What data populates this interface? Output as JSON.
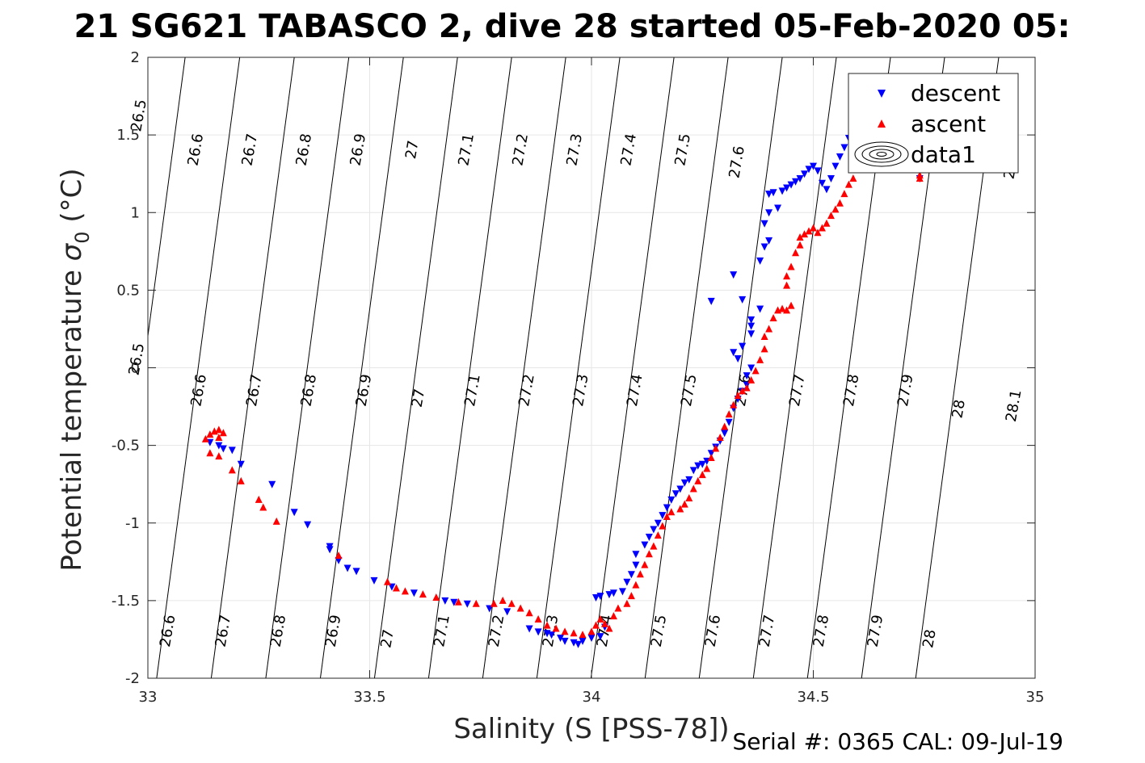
{
  "figure": {
    "title": "21 SG621 TABASCO 2, dive 28 started 05-Feb-2020 05:",
    "footer": "Serial #: 0365  CAL: 09-Jul-19"
  },
  "chart_data": {
    "type": "scatter",
    "xlabel": "Salinity (S [PSS-78])",
    "ylabel_main": "Potential temperature ",
    "ylabel_sigma": "σ",
    "ylabel_sub": "0",
    "ylabel_unit": " (°C)",
    "xlim": [
      33,
      35
    ],
    "ylim": [
      -2,
      2
    ],
    "x_ticks": [
      33,
      33.5,
      34,
      34.5,
      35
    ],
    "x_tick_labels": [
      "33",
      "33.5",
      "34",
      "34.5",
      "35"
    ],
    "y_ticks": [
      -2,
      -1.5,
      -1,
      -0.5,
      0,
      0.5,
      1,
      1.5,
      2
    ],
    "y_tick_labels": [
      "-2",
      "-1.5",
      "-1",
      "-0.5",
      "0",
      "0.5",
      "1",
      "1.5",
      "2"
    ],
    "grid": true,
    "legend_position": "top-right",
    "legend": [
      "descent",
      "ascent",
      "data1"
    ],
    "colors": {
      "descent": "#0000ff",
      "ascent": "#ff0000",
      "isopycnal": "#000000",
      "grid": "#e6e6e6"
    },
    "isopycnals": [
      {
        "sigma": 26.5,
        "s_at_top": 32.958,
        "slope": 0.0468
      },
      {
        "sigma": 26.6,
        "s_at_top": 33.084,
        "slope": 0.0468
      },
      {
        "sigma": 26.7,
        "s_at_top": 33.207,
        "slope": 0.0468
      },
      {
        "sigma": 26.8,
        "s_at_top": 33.33,
        "slope": 0.0468
      },
      {
        "sigma": 26.9,
        "s_at_top": 33.453,
        "slope": 0.0468
      },
      {
        "sigma": 27,
        "s_at_top": 33.576,
        "slope": 0.0468
      },
      {
        "sigma": 27.1,
        "s_at_top": 33.698,
        "slope": 0.0468
      },
      {
        "sigma": 27.2,
        "s_at_top": 33.82,
        "slope": 0.0468
      },
      {
        "sigma": 27.3,
        "s_at_top": 33.942,
        "slope": 0.0468
      },
      {
        "sigma": 27.4,
        "s_at_top": 34.064,
        "slope": 0.0468
      },
      {
        "sigma": 27.5,
        "s_at_top": 34.186,
        "slope": 0.0468
      },
      {
        "sigma": 27.6,
        "s_at_top": 34.308,
        "slope": 0.0468
      },
      {
        "sigma": 27.7,
        "s_at_top": 34.43,
        "slope": 0.0468
      },
      {
        "sigma": 27.8,
        "s_at_top": 34.552,
        "slope": 0.0468
      },
      {
        "sigma": 27.9,
        "s_at_top": 34.674,
        "slope": 0.0468
      },
      {
        "sigma": 28,
        "s_at_top": 34.796,
        "slope": 0.0468
      },
      {
        "sigma": 28.1,
        "s_at_top": 34.918,
        "slope": 0.0468
      }
    ],
    "isopycnal_labels": [
      {
        "text": "26.5",
        "x": 32.99,
        "y": 1.62
      },
      {
        "text": "26.6",
        "x": 33.118,
        "y": 1.4
      },
      {
        "text": "26.7",
        "x": 33.24,
        "y": 1.4
      },
      {
        "text": "26.8",
        "x": 33.362,
        "y": 1.4
      },
      {
        "text": "26.9",
        "x": 33.484,
        "y": 1.4
      },
      {
        "text": "27",
        "x": 33.606,
        "y": 1.4
      },
      {
        "text": "27.1",
        "x": 33.728,
        "y": 1.4
      },
      {
        "text": "27.2",
        "x": 33.85,
        "y": 1.4
      },
      {
        "text": "27.3",
        "x": 33.972,
        "y": 1.4
      },
      {
        "text": "27.4",
        "x": 34.094,
        "y": 1.4
      },
      {
        "text": "27.5",
        "x": 34.216,
        "y": 1.4
      },
      {
        "text": "27.6",
        "x": 34.338,
        "y": 1.32
      },
      {
        "text": "28",
        "x": 34.955,
        "y": 1.27
      },
      {
        "text": "26.5",
        "x": 32.985,
        "y": 0.05
      },
      {
        "text": "26.6",
        "x": 33.125,
        "y": -0.15
      },
      {
        "text": "26.7",
        "x": 33.25,
        "y": -0.15
      },
      {
        "text": "26.8",
        "x": 33.373,
        "y": -0.15
      },
      {
        "text": "26.9",
        "x": 33.497,
        "y": -0.15
      },
      {
        "text": "27",
        "x": 33.62,
        "y": -0.2
      },
      {
        "text": "27.1",
        "x": 33.742,
        "y": -0.15
      },
      {
        "text": "27.2",
        "x": 33.864,
        "y": -0.15
      },
      {
        "text": "27.3",
        "x": 33.986,
        "y": -0.15
      },
      {
        "text": "27.4",
        "x": 34.108,
        "y": -0.15
      },
      {
        "text": "27.5",
        "x": 34.23,
        "y": -0.15
      },
      {
        "text": "27.6",
        "x": 34.352,
        "y": -0.15
      },
      {
        "text": "27.7",
        "x": 34.474,
        "y": -0.15
      },
      {
        "text": "27.8",
        "x": 34.596,
        "y": -0.15
      },
      {
        "text": "27.9",
        "x": 34.718,
        "y": -0.15
      },
      {
        "text": "28",
        "x": 34.838,
        "y": -0.27
      },
      {
        "text": "28.1",
        "x": 34.962,
        "y": -0.25
      },
      {
        "text": "26.6",
        "x": 33.055,
        "y": -1.7
      },
      {
        "text": "26.7",
        "x": 33.18,
        "y": -1.7
      },
      {
        "text": "26.8",
        "x": 33.304,
        "y": -1.7
      },
      {
        "text": "26.9",
        "x": 33.428,
        "y": -1.7
      },
      {
        "text": "27",
        "x": 33.55,
        "y": -1.75
      },
      {
        "text": "27.1",
        "x": 33.673,
        "y": -1.7
      },
      {
        "text": "27.2",
        "x": 33.796,
        "y": -1.7
      },
      {
        "text": "27.3",
        "x": 33.918,
        "y": -1.7
      },
      {
        "text": "27.4",
        "x": 34.04,
        "y": -1.7
      },
      {
        "text": "27.5",
        "x": 34.162,
        "y": -1.7
      },
      {
        "text": "27.6",
        "x": 34.284,
        "y": -1.7
      },
      {
        "text": "27.7",
        "x": 34.406,
        "y": -1.7
      },
      {
        "text": "27.8",
        "x": 34.528,
        "y": -1.7
      },
      {
        "text": "27.9",
        "x": 34.65,
        "y": -1.7
      },
      {
        "text": "28",
        "x": 34.772,
        "y": -1.75
      }
    ],
    "series": [
      {
        "name": "descent",
        "marker": "triangle-down",
        "points": [
          [
            33.14,
            -0.48
          ],
          [
            33.16,
            -0.5
          ],
          [
            33.17,
            -0.52
          ],
          [
            33.19,
            -0.53
          ],
          [
            33.21,
            -0.62
          ],
          [
            33.28,
            -0.75
          ],
          [
            33.33,
            -0.93
          ],
          [
            33.36,
            -1.01
          ],
          [
            33.41,
            -1.15
          ],
          [
            33.41,
            -1.17
          ],
          [
            33.43,
            -1.24
          ],
          [
            33.45,
            -1.29
          ],
          [
            33.47,
            -1.31
          ],
          [
            33.51,
            -1.37
          ],
          [
            33.55,
            -1.41
          ],
          [
            33.6,
            -1.45
          ],
          [
            33.67,
            -1.5
          ],
          [
            33.69,
            -1.51
          ],
          [
            33.72,
            -1.52
          ],
          [
            33.77,
            -1.55
          ],
          [
            33.81,
            -1.57
          ],
          [
            33.86,
            -1.68
          ],
          [
            33.88,
            -1.7
          ],
          [
            33.9,
            -1.71
          ],
          [
            33.91,
            -1.72
          ],
          [
            33.93,
            -1.74
          ],
          [
            33.94,
            -1.76
          ],
          [
            33.96,
            -1.77
          ],
          [
            33.97,
            -1.78
          ],
          [
            33.98,
            -1.76
          ],
          [
            34.0,
            -1.74
          ],
          [
            34.02,
            -1.73
          ],
          [
            34.03,
            -1.67
          ],
          [
            34.01,
            -1.48
          ],
          [
            34.02,
            -1.47
          ],
          [
            34.04,
            -1.46
          ],
          [
            34.05,
            -1.45
          ],
          [
            34.07,
            -1.44
          ],
          [
            34.08,
            -1.38
          ],
          [
            34.09,
            -1.33
          ],
          [
            34.1,
            -1.27
          ],
          [
            34.1,
            -1.2
          ],
          [
            34.12,
            -1.14
          ],
          [
            34.13,
            -1.09
          ],
          [
            34.14,
            -1.04
          ],
          [
            34.15,
            -1.0
          ],
          [
            34.16,
            -0.95
          ],
          [
            34.17,
            -0.9
          ],
          [
            34.18,
            -0.85
          ],
          [
            34.19,
            -0.81
          ],
          [
            34.2,
            -0.78
          ],
          [
            34.21,
            -0.74
          ],
          [
            34.22,
            -0.72
          ],
          [
            34.23,
            -0.66
          ],
          [
            34.24,
            -0.63
          ],
          [
            34.25,
            -0.62
          ],
          [
            34.26,
            -0.6
          ],
          [
            34.27,
            -0.55
          ],
          [
            34.28,
            -0.51
          ],
          [
            34.29,
            -0.47
          ],
          [
            34.3,
            -0.42
          ],
          [
            34.31,
            -0.35
          ],
          [
            34.32,
            -0.26
          ],
          [
            34.33,
            -0.2
          ],
          [
            34.34,
            -0.15
          ],
          [
            34.35,
            -0.11
          ],
          [
            34.35,
            -0.05
          ],
          [
            34.36,
            0.0
          ],
          [
            34.33,
            0.06
          ],
          [
            34.32,
            0.1
          ],
          [
            34.34,
            0.14
          ],
          [
            34.36,
            0.22
          ],
          [
            34.36,
            0.27
          ],
          [
            34.36,
            0.31
          ],
          [
            34.38,
            0.38
          ],
          [
            34.34,
            0.44
          ],
          [
            34.32,
            0.6
          ],
          [
            34.27,
            0.43
          ],
          [
            34.38,
            0.69
          ],
          [
            34.39,
            0.78
          ],
          [
            34.4,
            0.82
          ],
          [
            34.39,
            0.93
          ],
          [
            34.4,
            1.0
          ],
          [
            34.42,
            1.03
          ],
          [
            34.4,
            1.12
          ],
          [
            34.41,
            1.13
          ],
          [
            34.43,
            1.14
          ],
          [
            34.44,
            1.16
          ],
          [
            34.45,
            1.18
          ],
          [
            34.46,
            1.2
          ],
          [
            34.47,
            1.22
          ],
          [
            34.48,
            1.25
          ],
          [
            34.49,
            1.28
          ],
          [
            34.5,
            1.3
          ],
          [
            34.51,
            1.27
          ],
          [
            34.52,
            1.19
          ],
          [
            34.53,
            1.15
          ],
          [
            34.54,
            1.22
          ],
          [
            34.55,
            1.3
          ],
          [
            34.56,
            1.36
          ],
          [
            34.57,
            1.42
          ],
          [
            34.58,
            1.48
          ],
          [
            34.59,
            1.53
          ],
          [
            34.6,
            1.57
          ],
          [
            34.61,
            1.55
          ],
          [
            34.74,
            1.22
          ]
        ]
      },
      {
        "name": "ascent",
        "marker": "triangle-up",
        "points": [
          [
            33.13,
            -0.46
          ],
          [
            33.14,
            -0.43
          ],
          [
            33.15,
            -0.41
          ],
          [
            33.16,
            -0.4
          ],
          [
            33.17,
            -0.42
          ],
          [
            33.16,
            -0.45
          ],
          [
            33.14,
            -0.55
          ],
          [
            33.16,
            -0.57
          ],
          [
            33.19,
            -0.66
          ],
          [
            33.21,
            -0.73
          ],
          [
            33.25,
            -0.85
          ],
          [
            33.26,
            -0.9
          ],
          [
            33.29,
            -0.99
          ],
          [
            33.43,
            -1.21
          ],
          [
            33.54,
            -1.38
          ],
          [
            33.56,
            -1.42
          ],
          [
            33.58,
            -1.44
          ],
          [
            33.62,
            -1.46
          ],
          [
            33.65,
            -1.48
          ],
          [
            33.7,
            -1.51
          ],
          [
            33.74,
            -1.52
          ],
          [
            33.78,
            -1.52
          ],
          [
            33.8,
            -1.5
          ],
          [
            33.82,
            -1.52
          ],
          [
            33.84,
            -1.55
          ],
          [
            33.86,
            -1.58
          ],
          [
            33.88,
            -1.62
          ],
          [
            33.9,
            -1.66
          ],
          [
            33.92,
            -1.68
          ],
          [
            33.94,
            -1.7
          ],
          [
            33.96,
            -1.71
          ],
          [
            33.98,
            -1.72
          ],
          [
            34.0,
            -1.7
          ],
          [
            34.01,
            -1.66
          ],
          [
            34.02,
            -1.62
          ],
          [
            34.03,
            -1.65
          ],
          [
            34.04,
            -1.68
          ],
          [
            34.05,
            -1.6
          ],
          [
            34.06,
            -1.55
          ],
          [
            34.08,
            -1.52
          ],
          [
            34.09,
            -1.47
          ],
          [
            34.1,
            -1.4
          ],
          [
            34.11,
            -1.33
          ],
          [
            34.12,
            -1.27
          ],
          [
            34.13,
            -1.2
          ],
          [
            34.14,
            -1.15
          ],
          [
            34.15,
            -1.08
          ],
          [
            34.16,
            -1.02
          ],
          [
            34.17,
            -0.96
          ],
          [
            34.18,
            -0.93
          ],
          [
            34.2,
            -0.91
          ],
          [
            34.21,
            -0.88
          ],
          [
            34.22,
            -0.84
          ],
          [
            34.23,
            -0.78
          ],
          [
            34.24,
            -0.73
          ],
          [
            34.25,
            -0.69
          ],
          [
            34.26,
            -0.65
          ],
          [
            34.27,
            -0.58
          ],
          [
            34.28,
            -0.52
          ],
          [
            34.29,
            -0.45
          ],
          [
            34.3,
            -0.38
          ],
          [
            34.31,
            -0.3
          ],
          [
            34.32,
            -0.24
          ],
          [
            34.33,
            -0.18
          ],
          [
            34.34,
            -0.15
          ],
          [
            34.35,
            -0.13
          ],
          [
            34.36,
            -0.08
          ],
          [
            34.37,
            -0.02
          ],
          [
            34.38,
            0.05
          ],
          [
            34.39,
            0.12
          ],
          [
            34.39,
            0.2
          ],
          [
            34.4,
            0.25
          ],
          [
            34.41,
            0.32
          ],
          [
            34.42,
            0.37
          ],
          [
            34.43,
            0.38
          ],
          [
            34.44,
            0.37
          ],
          [
            34.45,
            0.4
          ],
          [
            34.44,
            0.53
          ],
          [
            34.44,
            0.59
          ],
          [
            34.45,
            0.65
          ],
          [
            34.46,
            0.74
          ],
          [
            34.47,
            0.79
          ],
          [
            34.47,
            0.84
          ],
          [
            34.48,
            0.86
          ],
          [
            34.49,
            0.88
          ],
          [
            34.5,
            0.9
          ],
          [
            34.51,
            0.87
          ],
          [
            34.52,
            0.9
          ],
          [
            34.53,
            0.93
          ],
          [
            34.54,
            0.98
          ],
          [
            34.55,
            1.02
          ],
          [
            34.56,
            1.06
          ],
          [
            34.57,
            1.12
          ],
          [
            34.58,
            1.18
          ],
          [
            34.59,
            1.22
          ],
          [
            34.6,
            1.28
          ],
          [
            34.62,
            1.33
          ],
          [
            34.74,
            1.24
          ],
          [
            34.74,
            1.22
          ]
        ]
      }
    ]
  }
}
